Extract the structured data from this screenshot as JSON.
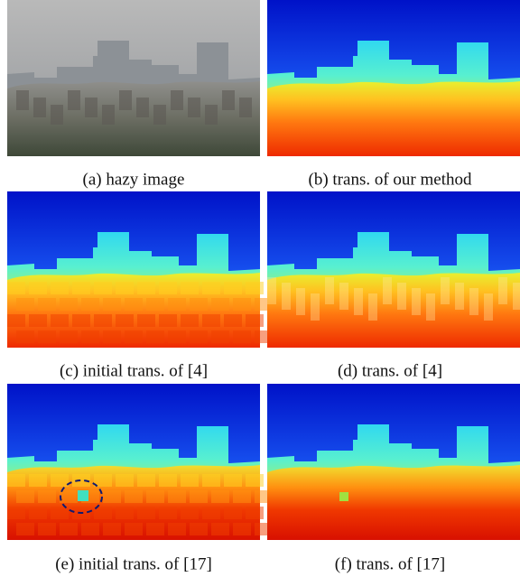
{
  "figure": {
    "captions": [
      "(a) hazy image",
      "(b) trans. of our method",
      "(c) initial trans. of [4]",
      "(d) trans. of [4]",
      "(e) initial trans. of [17]",
      "(f) trans. of [17]"
    ]
  }
}
